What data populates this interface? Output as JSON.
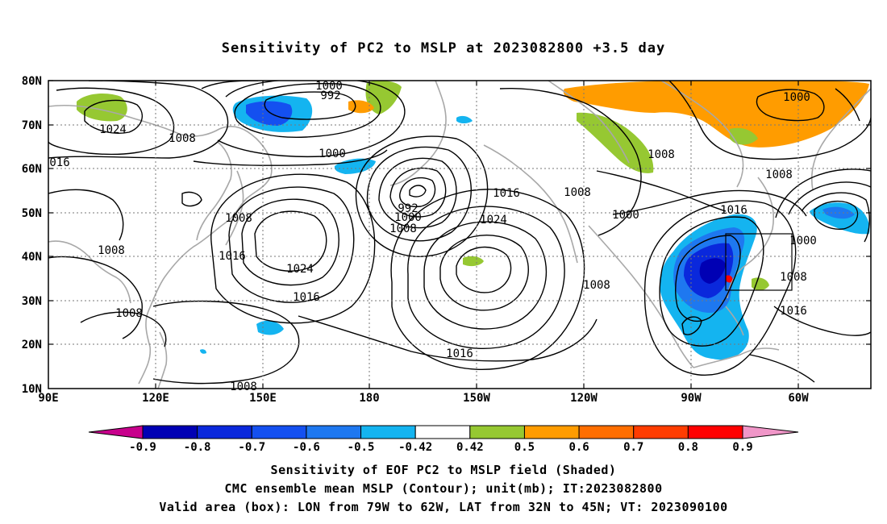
{
  "title": "Sensitivity of PC2 to MSLP at 2023082800 +3.5 day",
  "map": {
    "lat_labels": [
      "80N",
      "70N",
      "60N",
      "50N",
      "40N",
      "30N",
      "20N",
      "10N"
    ],
    "lon_labels": [
      "90E",
      "120E",
      "150E",
      "180",
      "150W",
      "120W",
      "90W",
      "60W"
    ],
    "contour_labels": [
      {
        "text": "1000"
      },
      {
        "text": "992"
      },
      {
        "text": "1024"
      },
      {
        "text": "1008"
      },
      {
        "text": "016"
      },
      {
        "text": "1000"
      },
      {
        "text": "992"
      },
      {
        "text": "1000"
      },
      {
        "text": "1008"
      },
      {
        "text": "1016"
      },
      {
        "text": "1024"
      },
      {
        "text": "1008"
      },
      {
        "text": "1016"
      },
      {
        "text": "1024"
      },
      {
        "text": "1016"
      },
      {
        "text": "1008"
      },
      {
        "text": "1008"
      },
      {
        "text": "1016"
      },
      {
        "text": "1008"
      },
      {
        "text": "1008"
      },
      {
        "text": "1000"
      },
      {
        "text": "1008"
      },
      {
        "text": "1000"
      },
      {
        "text": "1016"
      },
      {
        "text": "1000"
      },
      {
        "text": "1008"
      },
      {
        "text": "1016"
      },
      {
        "text": "1008"
      },
      {
        "text": "1008"
      }
    ]
  },
  "colorbar": {
    "labels": [
      "-0.9",
      "-0.8",
      "-0.7",
      "-0.6",
      "-0.5",
      "-0.42",
      "0.42",
      "0.5",
      "0.6",
      "0.7",
      "0.8",
      "0.9"
    ],
    "colors": [
      "#0000b4",
      "#0a28dc",
      "#1450f0",
      "#1e78f0",
      "#14b4f0",
      "#ffffff",
      "#96c832",
      "#ff9c00",
      "#ff6e00",
      "#ff3c00",
      "#ff0000"
    ],
    "low_cap_color": "#c8008c",
    "high_cap_color": "#f096c8"
  },
  "captions": {
    "line1": "Sensitivity of EOF PC2 to MSLP field (Shaded)",
    "line2": "CMC ensemble mean MSLP (Contour); unit(mb); IT:2023082800",
    "line3": "Valid area (box): LON from 79W to 62W, LAT from 32N to 45N; VT: 2023090100"
  }
}
